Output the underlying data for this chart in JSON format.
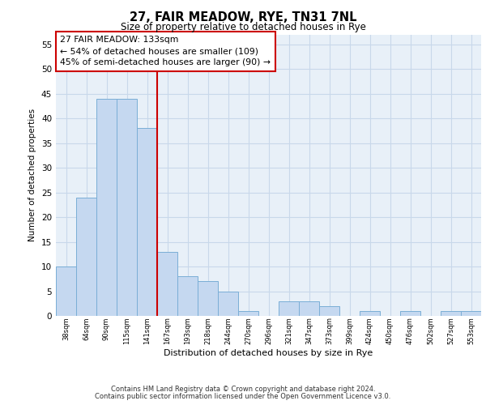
{
  "title1": "27, FAIR MEADOW, RYE, TN31 7NL",
  "title2": "Size of property relative to detached houses in Rye",
  "xlabel": "Distribution of detached houses by size in Rye",
  "ylabel": "Number of detached properties",
  "categories": [
    "38sqm",
    "64sqm",
    "90sqm",
    "115sqm",
    "141sqm",
    "167sqm",
    "193sqm",
    "218sqm",
    "244sqm",
    "270sqm",
    "296sqm",
    "321sqm",
    "347sqm",
    "373sqm",
    "399sqm",
    "424sqm",
    "450sqm",
    "476sqm",
    "502sqm",
    "527sqm",
    "553sqm"
  ],
  "values": [
    10,
    24,
    44,
    44,
    38,
    13,
    8,
    7,
    5,
    1,
    0,
    3,
    3,
    2,
    0,
    1,
    0,
    1,
    0,
    1,
    1
  ],
  "bar_color": "#c5d8f0",
  "bar_edge_color": "#7aaed6",
  "vline_color": "#cc0000",
  "annotation_text": "27 FAIR MEADOW: 133sqm\n← 54% of detached houses are smaller (109)\n45% of semi-detached houses are larger (90) →",
  "annotation_box_facecolor": "#ffffff",
  "annotation_box_edgecolor": "#cc0000",
  "ylim": [
    0,
    57
  ],
  "yticks": [
    0,
    5,
    10,
    15,
    20,
    25,
    30,
    35,
    40,
    45,
    50,
    55
  ],
  "grid_color": "#c8d8ea",
  "bg_color": "#e8f0f8",
  "footer1": "Contains HM Land Registry data © Crown copyright and database right 2024.",
  "footer2": "Contains public sector information licensed under the Open Government Licence v3.0."
}
